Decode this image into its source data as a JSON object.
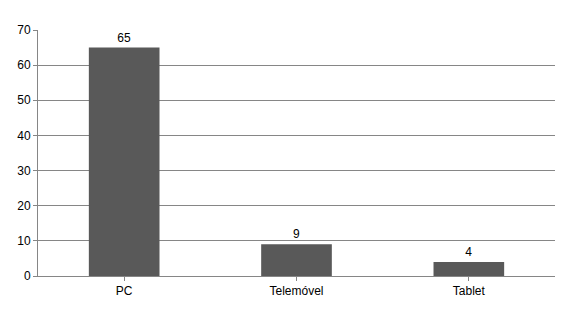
{
  "chart_data": {
    "type": "bar",
    "categories": [
      "PC",
      "Telemóvel",
      "Tablet"
    ],
    "values": [
      65,
      9,
      4
    ],
    "color": "#595959",
    "ylim": [
      0,
      70
    ],
    "yticks": [
      0,
      10,
      20,
      30,
      40,
      50,
      60,
      70
    ],
    "grid": true,
    "data_labels": true
  }
}
